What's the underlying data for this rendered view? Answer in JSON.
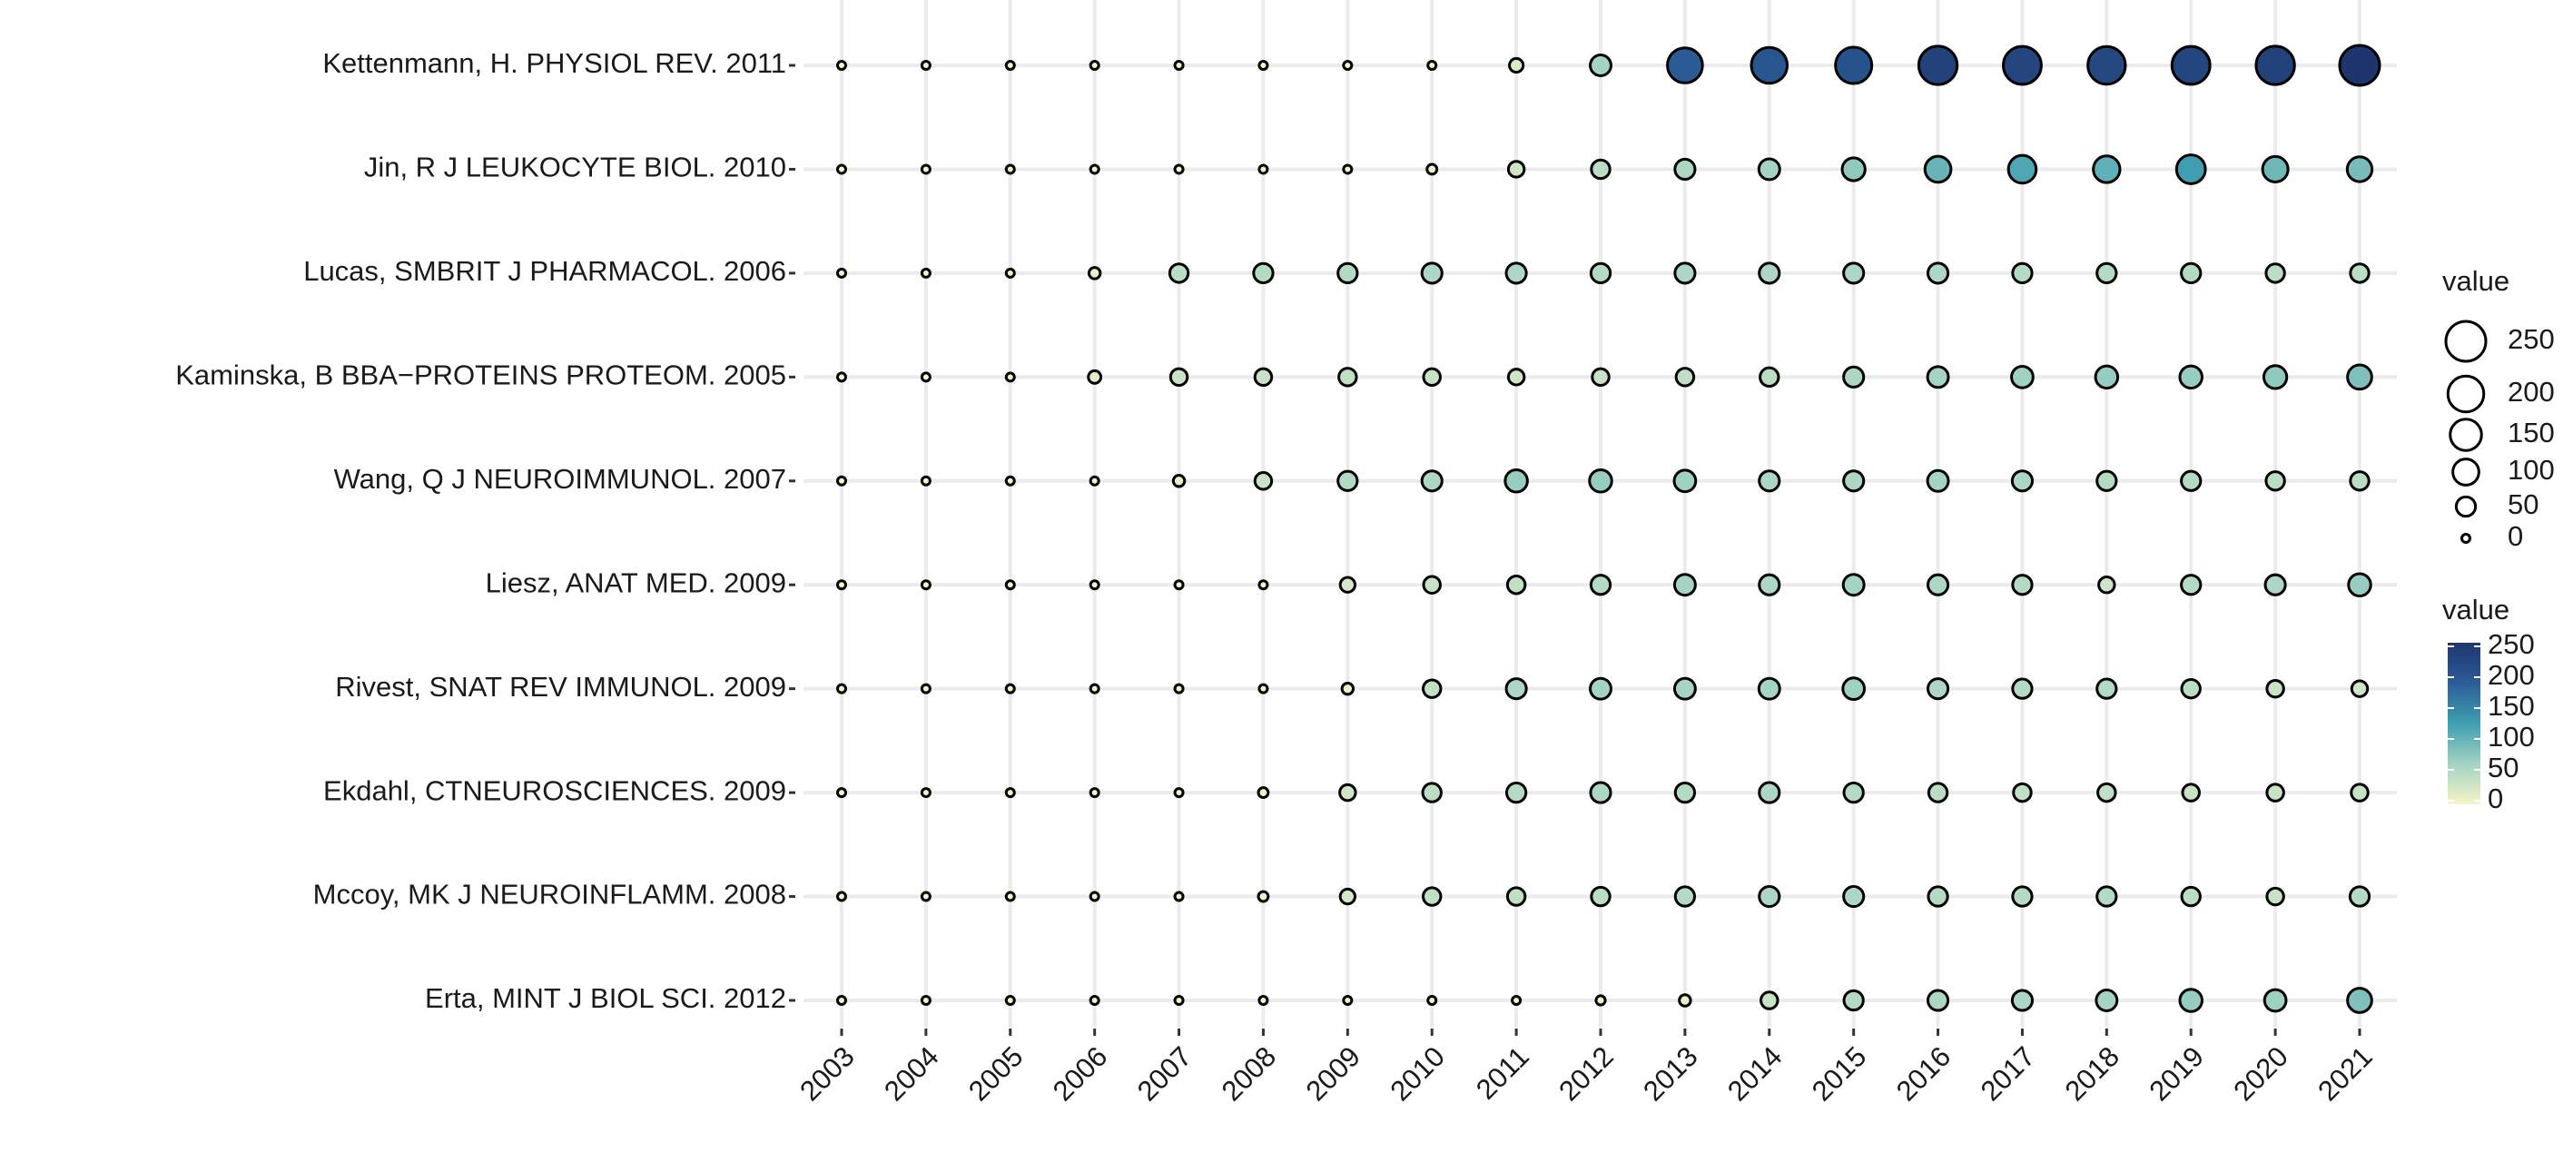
{
  "chart_data": {
    "type": "bubble",
    "categories": [
      "2003",
      "2004",
      "2005",
      "2006",
      "2007",
      "2008",
      "2009",
      "2010",
      "2011",
      "2012",
      "2013",
      "2014",
      "2015",
      "2016",
      "2017",
      "2018",
      "2019",
      "2020",
      "2021"
    ],
    "rows": [
      "Kettenmann, H. PHYSIOL REV. 2011",
      "Jin, R J LEUKOCYTE BIOL. 2010",
      "Lucas, SMBRIT J PHARMACOL. 2006",
      "Kaminska, B BBA−PROTEINS PROTEOM. 2005",
      "Wang, Q J NEUROIMMUNOL. 2007",
      "Liesz, ANAT MED. 2009",
      "Rivest, SNAT REV IMMUNOL. 2009",
      "Ekdahl, CTNEUROSCIENCES. 2009",
      "Mccoy, MK J NEUROINFLAMM. 2008",
      "Erta, MINT J BIOL SCI. 2012"
    ],
    "values": [
      [
        0,
        0,
        0,
        0,
        0,
        0,
        0,
        0,
        20,
        60,
        190,
        200,
        205,
        230,
        225,
        220,
        225,
        230,
        250
      ],
      [
        0,
        0,
        0,
        0,
        0,
        0,
        0,
        5,
        30,
        45,
        55,
        60,
        75,
        100,
        115,
        105,
        125,
        95,
        90
      ],
      [
        0,
        0,
        0,
        10,
        45,
        50,
        50,
        55,
        55,
        50,
        55,
        55,
        55,
        55,
        50,
        50,
        50,
        45,
        45
      ],
      [
        0,
        0,
        0,
        15,
        35,
        35,
        40,
        35,
        30,
        35,
        40,
        45,
        55,
        60,
        65,
        70,
        70,
        75,
        85
      ],
      [
        0,
        0,
        0,
        0,
        10,
        35,
        50,
        55,
        70,
        70,
        65,
        55,
        55,
        60,
        55,
        50,
        50,
        45,
        45
      ],
      [
        0,
        0,
        0,
        0,
        0,
        0,
        25,
        35,
        40,
        50,
        60,
        55,
        60,
        55,
        50,
        30,
        50,
        55,
        70
      ],
      [
        0,
        0,
        0,
        0,
        0,
        0,
        10,
        40,
        55,
        60,
        60,
        60,
        65,
        55,
        50,
        50,
        45,
        35,
        30
      ],
      [
        0,
        0,
        0,
        0,
        0,
        5,
        30,
        45,
        50,
        55,
        50,
        55,
        50,
        45,
        40,
        40,
        35,
        35,
        35
      ],
      [
        0,
        0,
        0,
        0,
        0,
        5,
        25,
        40,
        40,
        45,
        50,
        55,
        55,
        50,
        50,
        50,
        45,
        35,
        50
      ],
      [
        0,
        0,
        0,
        0,
        0,
        0,
        0,
        0,
        0,
        3,
        10,
        35,
        50,
        55,
        55,
        60,
        70,
        65,
        85
      ]
    ],
    "size_lim": [
      0,
      250
    ],
    "color_lim": [
      0,
      250
    ],
    "palette": [
      "#f6f5c8",
      "#a3d3c3",
      "#3f9fb1",
      "#2c5d97",
      "#1f3570"
    ],
    "grid": true,
    "size_legend": {
      "title": "value",
      "values": [
        250,
        200,
        150,
        100,
        50,
        0
      ]
    },
    "color_legend": {
      "title": "value",
      "ticks": [
        250,
        200,
        150,
        100,
        50,
        0
      ]
    }
  }
}
